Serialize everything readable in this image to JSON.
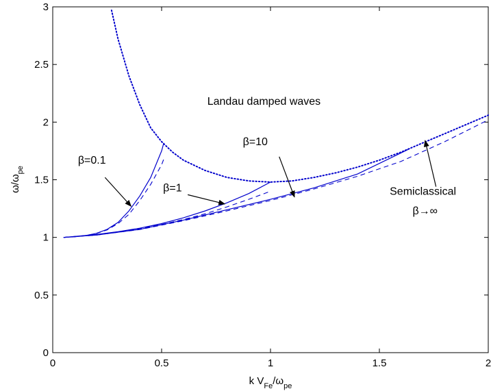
{
  "chart_data": {
    "type": "line",
    "title": "",
    "xlabel": {
      "main": "k V",
      "sub1": "Fe",
      "mid": "/ω",
      "sub2": "pe"
    },
    "ylabel": {
      "main": "ω/ω",
      "sub": "pe"
    },
    "xlim": [
      0,
      2
    ],
    "ylim": [
      0,
      3
    ],
    "xticks": [
      0,
      0.5,
      1,
      1.5,
      2
    ],
    "yticks": [
      0,
      0.5,
      1,
      1.5,
      2,
      2.5,
      3
    ],
    "xtick_labels": [
      "0",
      "0.5",
      "1",
      "1.5",
      "2"
    ],
    "ytick_labels": [
      "0",
      "0.5",
      "1",
      "1.5",
      "2",
      "2.5",
      "3"
    ],
    "grid": false,
    "colors": {
      "series": "#0000cc",
      "arrow": "#000000"
    },
    "series": [
      {
        "style": "dotted",
        "x": [
          0.27,
          0.3,
          0.35,
          0.4,
          0.45,
          0.5,
          0.55,
          0.6,
          0.7,
          0.8,
          0.9,
          1.0,
          1.1,
          1.2,
          1.3,
          1.4,
          1.5,
          1.6,
          1.7,
          1.8,
          1.9,
          2.0
        ],
        "y": [
          2.97,
          2.72,
          2.4,
          2.15,
          1.95,
          1.83,
          1.74,
          1.67,
          1.58,
          1.52,
          1.49,
          1.48,
          1.49,
          1.52,
          1.56,
          1.61,
          1.67,
          1.74,
          1.82,
          1.9,
          1.98,
          2.06
        ]
      },
      {
        "style": "solid",
        "x": [
          0.05,
          0.1,
          0.15,
          0.2,
          0.25,
          0.3,
          0.35,
          0.4,
          0.45,
          0.5,
          0.51
        ],
        "y": [
          1.0,
          1.005,
          1.015,
          1.035,
          1.07,
          1.13,
          1.23,
          1.36,
          1.52,
          1.75,
          1.82
        ]
      },
      {
        "style": "dashed",
        "x": [
          0.05,
          0.1,
          0.15,
          0.2,
          0.25,
          0.3,
          0.35,
          0.4,
          0.45,
          0.5,
          0.51
        ],
        "y": [
          1.0,
          1.005,
          1.015,
          1.033,
          1.065,
          1.12,
          1.2,
          1.32,
          1.46,
          1.63,
          1.68
        ]
      },
      {
        "style": "solid",
        "x": [
          0.05,
          0.2,
          0.3,
          0.4,
          0.5,
          0.6,
          0.7,
          0.8,
          0.9,
          1.0
        ],
        "y": [
          1.0,
          1.025,
          1.05,
          1.08,
          1.12,
          1.17,
          1.23,
          1.3,
          1.38,
          1.48
        ]
      },
      {
        "style": "dashed",
        "x": [
          0.05,
          0.2,
          0.3,
          0.4,
          0.5,
          0.6,
          0.7,
          0.8,
          0.9,
          1.0
        ],
        "y": [
          1.0,
          1.024,
          1.048,
          1.077,
          1.112,
          1.155,
          1.205,
          1.265,
          1.33,
          1.4
        ]
      },
      {
        "style": "solid",
        "x": [
          0.05,
          0.2,
          0.4,
          0.6,
          0.8,
          1.0,
          1.2,
          1.4,
          1.64
        ],
        "y": [
          1.0,
          1.02,
          1.07,
          1.15,
          1.24,
          1.33,
          1.43,
          1.55,
          1.77
        ]
      },
      {
        "style": "dashed",
        "x": [
          0.05,
          0.2,
          0.4,
          0.6,
          0.8,
          1.0,
          1.2,
          1.4,
          1.6,
          1.8,
          2.0
        ],
        "y": [
          1.0,
          1.02,
          1.068,
          1.145,
          1.23,
          1.32,
          1.42,
          1.53,
          1.66,
          1.83,
          2.02
        ]
      }
    ],
    "annotations": [
      {
        "text": "Landau damped waves",
        "x": 0.97,
        "y": 2.15
      },
      {
        "text": "β=0.1",
        "x": 0.18,
        "y": 1.64
      },
      {
        "text": "β=1",
        "x": 0.55,
        "y": 1.4
      },
      {
        "text": "β=10",
        "x": 0.93,
        "y": 1.8
      },
      {
        "text": "Semiclassical",
        "x": 1.7,
        "y": 1.37
      },
      {
        "text": "β→∞",
        "x": 1.71,
        "y": 1.2
      }
    ],
    "arrows": [
      {
        "from": [
          0.24,
          1.52
        ],
        "to": [
          0.36,
          1.27
        ]
      },
      {
        "from": [
          0.62,
          1.37
        ],
        "to": [
          0.79,
          1.29
        ]
      },
      {
        "from": [
          1.04,
          1.7
        ],
        "to": [
          1.11,
          1.35
        ]
      },
      {
        "from": [
          1.76,
          1.44
        ],
        "to": [
          1.71,
          1.84
        ]
      }
    ]
  }
}
